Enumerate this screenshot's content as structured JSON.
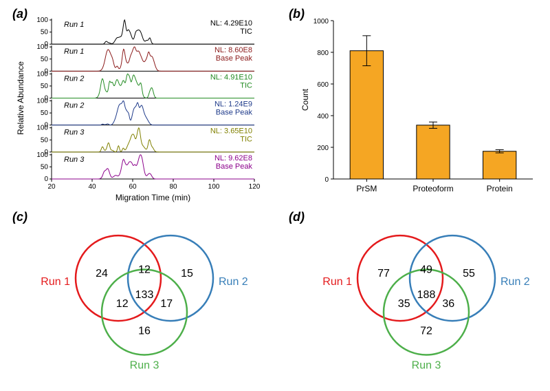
{
  "panelA": {
    "label": "(a)",
    "ylabel": "Relative Abundance",
    "xlabel": "Migration Time (min)",
    "xlim": [
      20,
      120
    ],
    "xticks": [
      20,
      40,
      60,
      80,
      100,
      120
    ],
    "yticks": [
      0,
      50,
      100
    ],
    "traces": [
      {
        "run": "Run 1",
        "nl": "NL: 4.29E10",
        "type": "TIC",
        "color": "#000000"
      },
      {
        "run": "Run 1",
        "nl": "NL: 8.60E8",
        "type": "Base Peak",
        "color": "#8b1a1a"
      },
      {
        "run": "Run 2",
        "nl": "NL: 4.91E10",
        "type": "TIC",
        "color": "#228b22"
      },
      {
        "run": "Run 2",
        "nl": "NL: 1.24E9",
        "type": "Base Peak",
        "color": "#1e3a8a"
      },
      {
        "run": "Run 3",
        "nl": "NL: 3.65E10",
        "type": "TIC",
        "color": "#808000"
      },
      {
        "run": "Run 3",
        "nl": "NL: 9.62E8",
        "type": "Base Peak",
        "color": "#8b008b"
      }
    ]
  },
  "panelB": {
    "label": "(b)",
    "ylabel": "Count",
    "ylim": [
      0,
      1000
    ],
    "yticks": [
      0,
      200,
      400,
      600,
      800,
      1000
    ],
    "categories": [
      "PrSM",
      "Proteoform",
      "Protein"
    ],
    "values": [
      810,
      340,
      175
    ],
    "errors": [
      95,
      20,
      10
    ],
    "bar_color": "#f5a623",
    "bar_border": "#000000",
    "bar_width": 0.5
  },
  "panelC": {
    "label": "(c)",
    "runs": {
      "r1": "Run 1",
      "r2": "Run 2",
      "r3": "Run 3"
    },
    "colors": {
      "r1": "#e41a1c",
      "r2": "#377eb8",
      "r3": "#4daf4a"
    },
    "values": {
      "only1": 24,
      "only2": 15,
      "only3": 16,
      "i12": 12,
      "i13": 12,
      "i23": 17,
      "i123": 133
    }
  },
  "panelD": {
    "label": "(d)",
    "runs": {
      "r1": "Run 1",
      "r2": "Run 2",
      "r3": "Run 3"
    },
    "colors": {
      "r1": "#e41a1c",
      "r2": "#377eb8",
      "r3": "#4daf4a"
    },
    "values": {
      "only1": 77,
      "only2": 55,
      "only3": 72,
      "i12": 49,
      "i13": 35,
      "i23": 36,
      "i123": 188
    }
  }
}
